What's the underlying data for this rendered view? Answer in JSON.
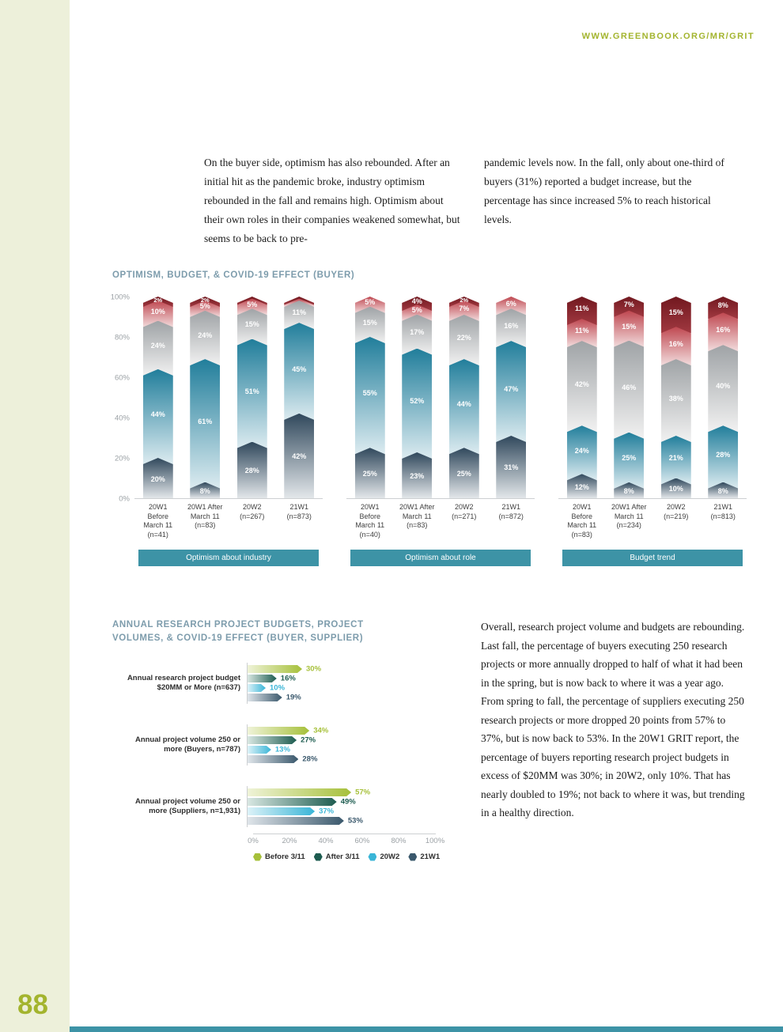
{
  "header": {
    "url": "WWW.GREENBOOK.ORG/MR/GRIT"
  },
  "footer": {
    "page_number": "88"
  },
  "accent_colors": {
    "olive": "#a3b42e",
    "teal": "#3d93a6",
    "title_blue_gray": "#7d9cac",
    "stripe": "#edf0da"
  },
  "intro": {
    "col1": "On the buyer side, optimism has also rebounded. After an initial hit as the pandemic broke, industry optimism rebounded in the fall and remains high. Optimism about their own roles in their companies weakened somewhat, but seems to be back to pre-",
    "col2": "pandemic levels now. In the fall, only about one-third of buyers (31%) reported a budget increase, but the percentage has since increased 5% to reach historical levels."
  },
  "stacked_section": {
    "title": "OPTIMISM, BUDGET, & COVID-19 EFFECT (BUYER)",
    "y_ticks": [
      "100%",
      "80%",
      "60%",
      "40%",
      "20%",
      "0%"
    ],
    "segment_gradients": [
      [
        "#30485c",
        "#e3e7ea"
      ],
      [
        "#217e9b",
        "#dcebf0"
      ],
      [
        "#9fa3a6",
        "#f1f1f1"
      ],
      [
        "#bf4750",
        "#f2dcdd"
      ],
      [
        "#71181f",
        "#a03840"
      ]
    ]
  },
  "bar_section": {
    "title": "ANNUAL RESEARCH PROJECT BUDGETS, PROJECT\nVOLUMES, & COVID-19 EFFECT (BUYER, SUPPLIER)",
    "series_colors": [
      {
        "light": "#eff3d8",
        "full": "#a6c03a"
      },
      {
        "light": "#d8e7e2",
        "full": "#1d5c50"
      },
      {
        "light": "#dcf2f8",
        "full": "#39b5d7"
      },
      {
        "light": "#dfe5ea",
        "full": "#3a586c"
      }
    ],
    "paragraph": "Overall, research project volume and budgets are rebounding. Last fall, the percentage of buyers executing 250 research projects or more annually dropped to half of what it had been in the spring, but is now back to where it was a year ago. From spring to fall, the percentage of suppliers executing 250 research projects or more dropped 20 points from 57% to 37%, but is now back to 53%. In the 20W1 GRIT report, the percentage of buyers reporting research project budgets in excess of $20MM was 30%; in 20W2, only 10%. That has nearly doubled to 19%; not back to where it was, but trending in a healthy direction."
  },
  "chart_data": [
    {
      "type": "bar",
      "variant": "stacked_100_percent_vertical",
      "title": "OPTIMISM, BUDGET, & COVID-19 EFFECT (BUYER)",
      "ylim": [
        0,
        100
      ],
      "y_ticks": [
        "0%",
        "20%",
        "40%",
        "60%",
        "80%",
        "100%"
      ],
      "grid": false,
      "segment_order_bottom_to_top": [
        "dark-navy",
        "teal",
        "gray",
        "red",
        "dark-red"
      ],
      "groups": [
        {
          "label": "Optimism about industry",
          "categories": [
            "20W1\nBefore\nMarch 11\n(n=41)",
            "20W1 After\nMarch 11\n(n=83)",
            "20W2\n(n=267)",
            "21W1\n(n=873)"
          ],
          "series": [
            {
              "name": "dark-navy",
              "values": [
                20,
                8,
                28,
                42
              ]
            },
            {
              "name": "teal",
              "values": [
                44,
                61,
                51,
                45
              ]
            },
            {
              "name": "gray",
              "values": [
                24,
                24,
                15,
                11
              ]
            },
            {
              "name": "red",
              "values": [
                10,
                5,
                5,
                1
              ]
            },
            {
              "name": "dark-red",
              "values": [
                2,
                2,
                1,
                1
              ]
            }
          ]
        },
        {
          "label": "Optimism about role",
          "categories": [
            "20W1\nBefore\nMarch 11\n(n=40)",
            "20W1 After\nMarch 11\n(n=83)",
            "20W2\n(n=271)",
            "21W1\n(n=872)"
          ],
          "series": [
            {
              "name": "dark-navy",
              "values": [
                25,
                23,
                25,
                31
              ]
            },
            {
              "name": "teal",
              "values": [
                55,
                52,
                44,
                47
              ]
            },
            {
              "name": "gray",
              "values": [
                15,
                17,
                22,
                16
              ]
            },
            {
              "name": "red",
              "values": [
                5,
                5,
                7,
                6
              ]
            },
            {
              "name": "dark-red",
              "values": [
                0,
                4,
                2,
                0
              ]
            }
          ]
        },
        {
          "label": "Budget trend",
          "categories": [
            "20W1\nBefore\nMarch 11\n(n=83)",
            "20W1 After\nMarch 11\n(n=234)",
            "20W2\n(n=219)",
            "21W1\n(n=813)"
          ],
          "series": [
            {
              "name": "dark-navy",
              "values": [
                12,
                8,
                10,
                8
              ]
            },
            {
              "name": "teal",
              "values": [
                24,
                25,
                21,
                28
              ]
            },
            {
              "name": "gray",
              "values": [
                42,
                46,
                38,
                40
              ]
            },
            {
              "name": "red",
              "values": [
                11,
                15,
                16,
                16
              ]
            },
            {
              "name": "dark-red",
              "values": [
                11,
                7,
                15,
                8
              ]
            }
          ]
        }
      ]
    },
    {
      "type": "bar",
      "variant": "grouped_horizontal",
      "title": "ANNUAL RESEARCH PROJECT BUDGETS, PROJECT VOLUMES, & COVID-19 EFFECT (BUYER, SUPPLIER)",
      "xlim": [
        0,
        100
      ],
      "x_ticks": [
        "0%",
        "20%",
        "40%",
        "60%",
        "80%",
        "100%"
      ],
      "grid": false,
      "legend_position": "bottom",
      "categories": [
        "Annual research project budget\n$20MM or More (n=637)",
        "Annual project volume 250 or\nmore (Buyers, n=787)",
        "Annual project volume 250 or\nmore (Suppliers, n=1,931)"
      ],
      "series": [
        {
          "name": "Before 3/11",
          "values": [
            30,
            34,
            57
          ]
        },
        {
          "name": "After 3/11",
          "values": [
            16,
            27,
            49
          ]
        },
        {
          "name": "20W2",
          "values": [
            10,
            13,
            37
          ]
        },
        {
          "name": "21W1",
          "values": [
            19,
            28,
            53
          ]
        }
      ]
    }
  ]
}
